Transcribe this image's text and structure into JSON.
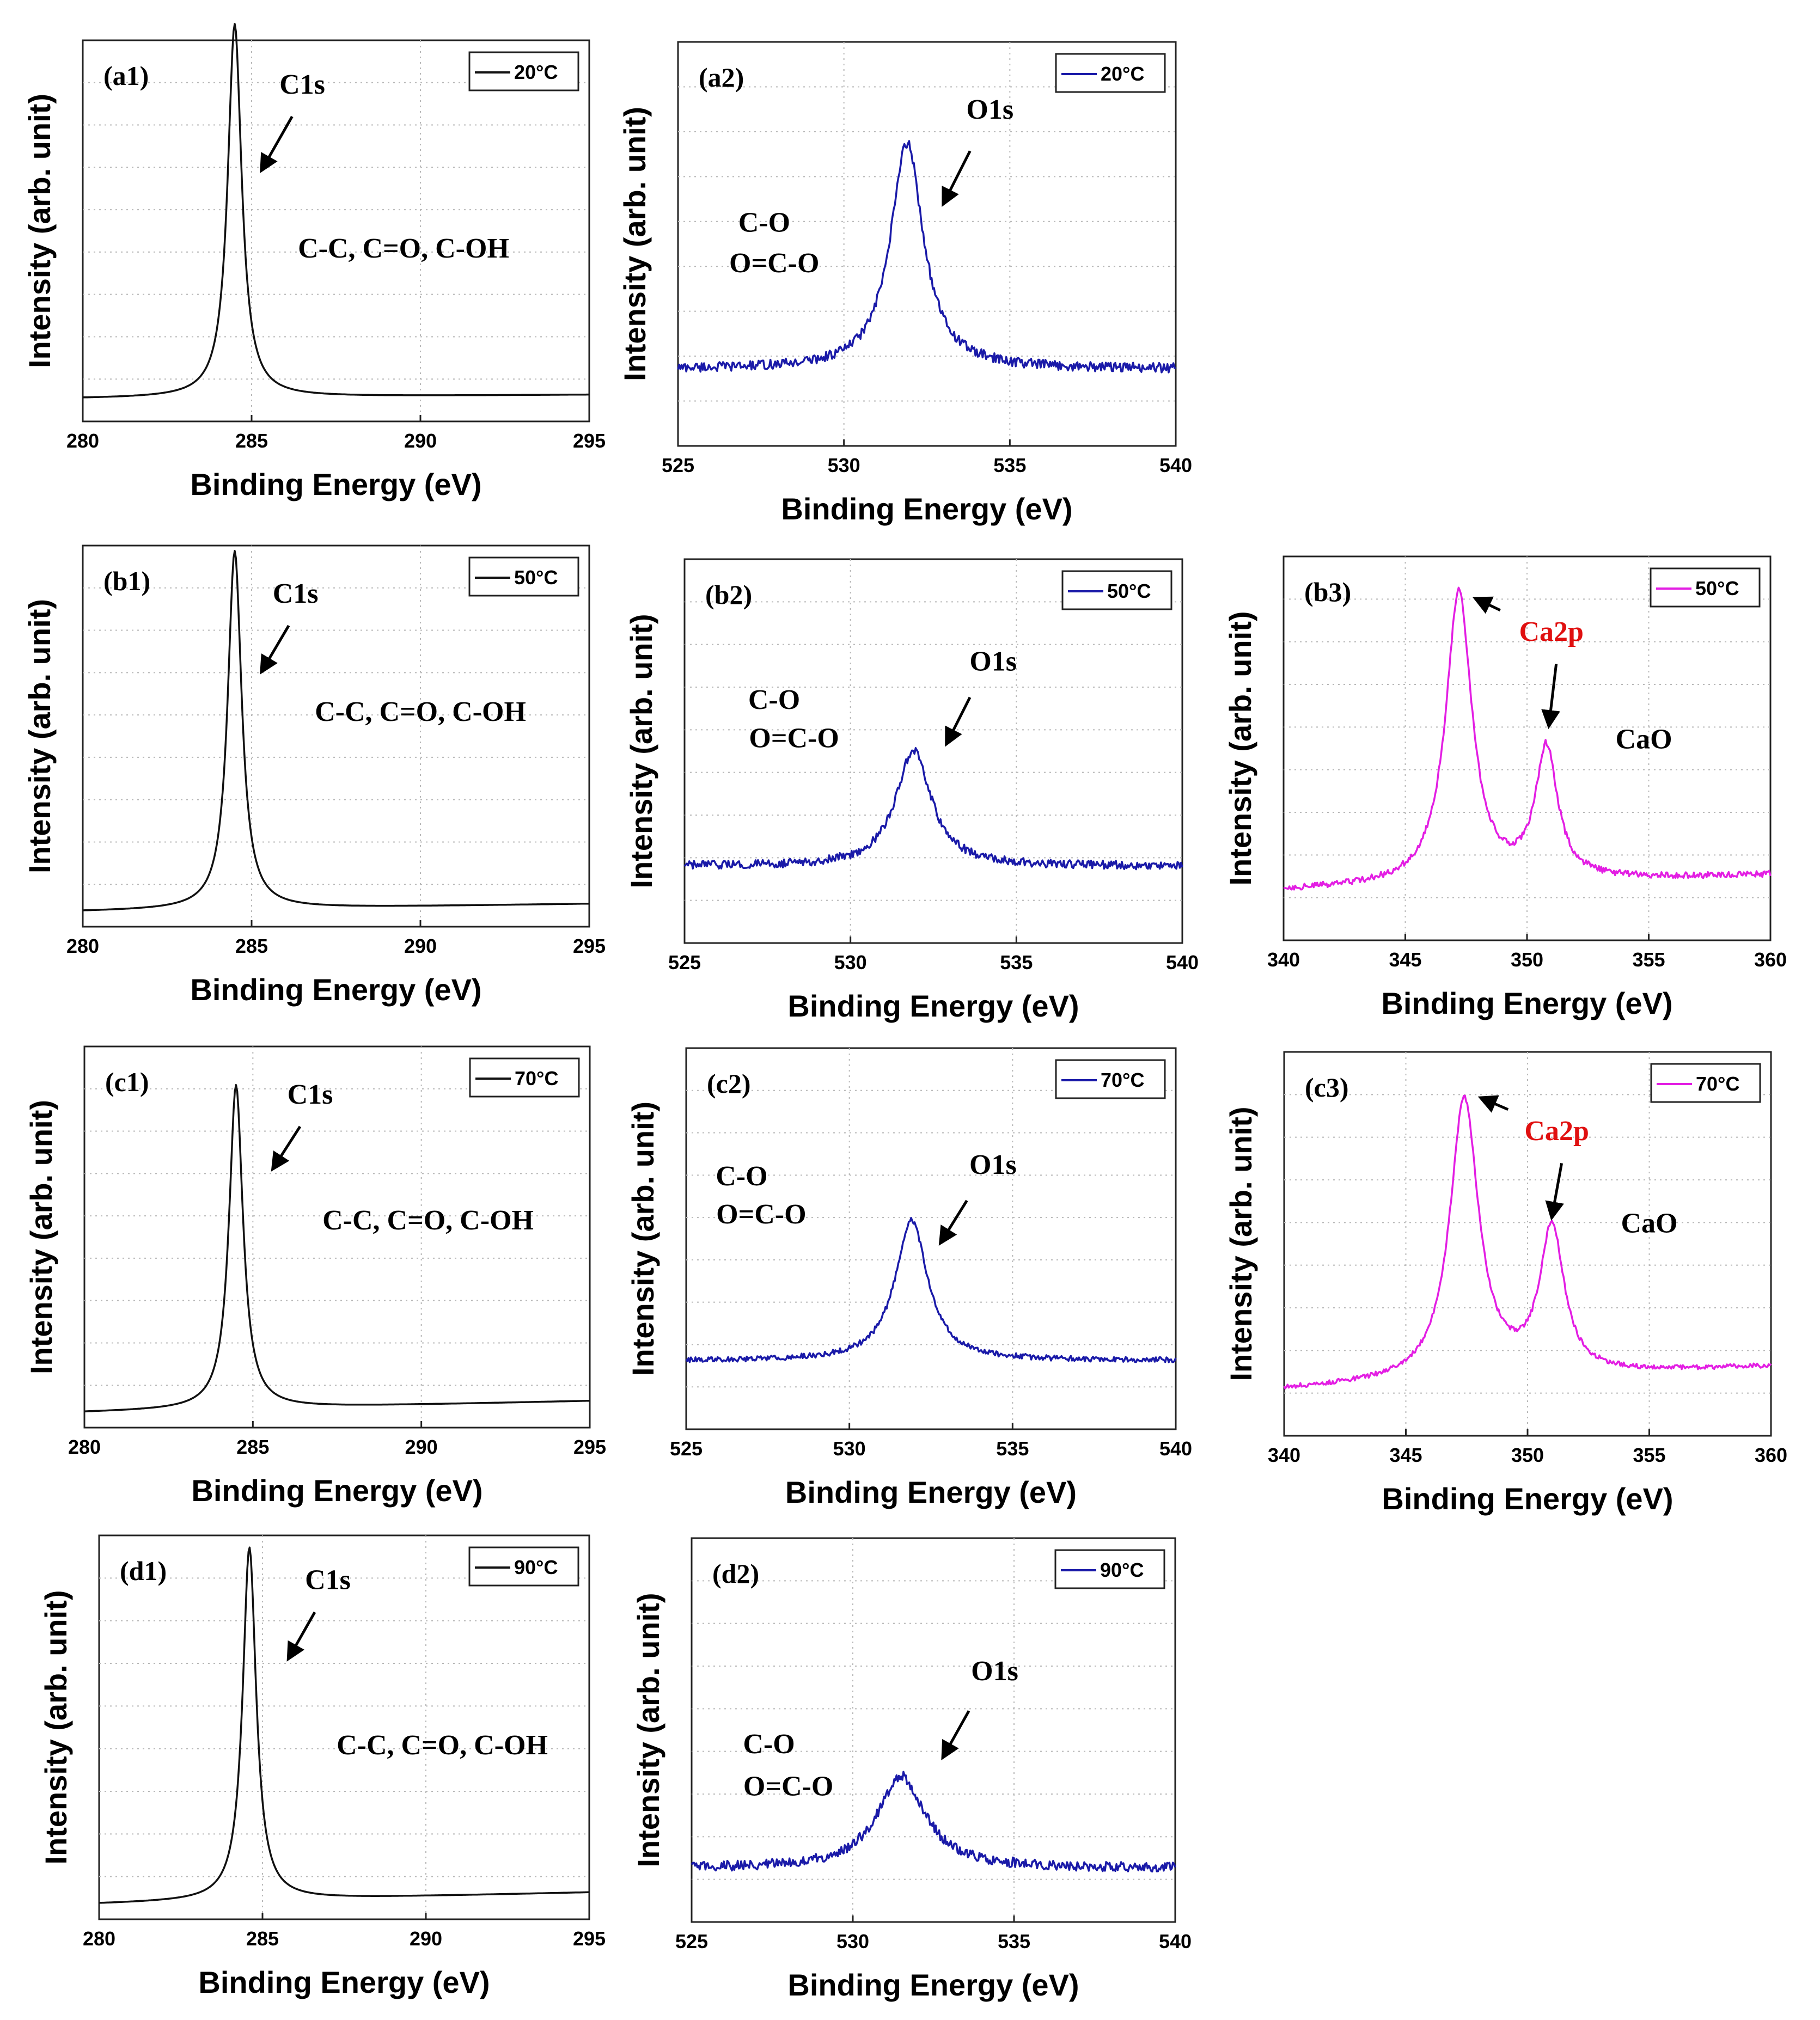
{
  "figure": {
    "axis_label_x": "Binding Energy (eV)",
    "axis_label_y": "Intensity (arb. unit)",
    "colors": {
      "C1s": "#111111",
      "O1s": "#1a1aa8",
      "Ca2p": "#e31ee3",
      "arrow": "#000000",
      "highlight": "#e01010",
      "grid": "#b8b8b8"
    }
  },
  "chart_data": [
    {
      "id": "a1",
      "panel_label": "(a1)",
      "type": "line",
      "temperature": "20°C",
      "xlabel": "Binding Energy (eV)",
      "ylabel": "Intensity (arb. unit)",
      "xlim": [
        280,
        295
      ],
      "xticks": [
        "280",
        "285",
        "290",
        "295"
      ],
      "ylim": [
        0,
        1
      ],
      "series": [
        {
          "name": "20°C",
          "color": "#111111",
          "peaks": [
            {
              "center": 284.5,
              "height": 0.98,
              "width": 0.25
            }
          ],
          "baseline": [
            0.06,
            0.07
          ],
          "noise": 0.0
        }
      ],
      "annotations": [
        {
          "text": "C1s",
          "at": [
            286.5,
            0.86
          ],
          "arrow_from": [
            286.2,
            0.8
          ],
          "arrow_to": [
            285.3,
            0.66
          ]
        },
        {
          "text": "C-C, C=O, C-OH",
          "at": [
            289.5,
            0.43
          ]
        }
      ]
    },
    {
      "id": "a2",
      "panel_label": "(a2)",
      "type": "line",
      "temperature": "20°C",
      "xlabel": "Binding Energy (eV)",
      "ylabel": "Intensity (arb. unit)",
      "xlim": [
        525,
        540
      ],
      "xticks": [
        "525",
        "530",
        "535",
        "540"
      ],
      "ylim": [
        0,
        1
      ],
      "series": [
        {
          "name": "20°C",
          "color": "#1a1aa8",
          "peaks": [
            {
              "center": 531.9,
              "height": 0.56,
              "width": 0.6
            }
          ],
          "baseline": [
            0.19,
            0.19
          ],
          "noise": 0.012
        }
      ],
      "annotations": [
        {
          "text": "O1s",
          "at": [
            534.4,
            0.81
          ],
          "arrow_from": [
            533.8,
            0.73
          ],
          "arrow_to": [
            533.0,
            0.6
          ]
        },
        {
          "text": "C-O",
          "at": [
            527.6,
            0.53
          ]
        },
        {
          "text": "O=C-O",
          "at": [
            527.9,
            0.43
          ]
        }
      ]
    },
    {
      "id": "b1",
      "panel_label": "(b1)",
      "type": "line",
      "temperature": "50°C",
      "xlabel": "Binding Energy (eV)",
      "ylabel": "Intensity (arb. unit)",
      "xlim": [
        280,
        295
      ],
      "xticks": [
        "280",
        "285",
        "290",
        "295"
      ],
      "ylim": [
        0,
        1
      ],
      "series": [
        {
          "name": "50°C",
          "color": "#111111",
          "peaks": [
            {
              "center": 284.5,
              "height": 0.94,
              "width": 0.25
            }
          ],
          "baseline": [
            0.04,
            0.06
          ],
          "noise": 0.0
        }
      ],
      "annotations": [
        {
          "text": "C1s",
          "at": [
            286.3,
            0.85
          ],
          "arrow_from": [
            286.1,
            0.79
          ],
          "arrow_to": [
            285.3,
            0.67
          ]
        },
        {
          "text": "C-C, C=O, C-OH",
          "at": [
            290.0,
            0.54
          ]
        }
      ]
    },
    {
      "id": "b2",
      "panel_label": "(b2)",
      "type": "line",
      "temperature": "50°C",
      "xlabel": "Binding Energy (eV)",
      "ylabel": "Intensity (arb. unit)",
      "xlim": [
        525,
        540
      ],
      "xticks": [
        "525",
        "530",
        "535",
        "540"
      ],
      "ylim": [
        0,
        1
      ],
      "series": [
        {
          "name": "50°C",
          "color": "#1a1aa8",
          "peaks": [
            {
              "center": 531.9,
              "height": 0.3,
              "width": 0.65
            }
          ],
          "baseline": [
            0.2,
            0.2
          ],
          "noise": 0.011
        }
      ],
      "annotations": [
        {
          "text": "O1s",
          "at": [
            534.3,
            0.71
          ],
          "arrow_from": [
            533.6,
            0.64
          ],
          "arrow_to": [
            532.9,
            0.52
          ]
        },
        {
          "text": "C-O",
          "at": [
            527.7,
            0.61
          ]
        },
        {
          "text": "O=C-O",
          "at": [
            528.3,
            0.51
          ]
        }
      ]
    },
    {
      "id": "b3",
      "panel_label": "(b3)",
      "type": "line",
      "temperature": "50°C",
      "xlabel": "Binding Energy (eV)",
      "ylabel": "Intensity (arb. unit)",
      "xlim": [
        340,
        360
      ],
      "xticks": [
        "340",
        "345",
        "350",
        "355",
        "360"
      ],
      "ylim": [
        0,
        1
      ],
      "series": [
        {
          "name": "50°C",
          "color": "#e31ee3",
          "peaks": [
            {
              "center": 347.2,
              "height": 0.76,
              "width": 0.65
            },
            {
              "center": 350.8,
              "height": 0.34,
              "width": 0.55
            }
          ],
          "baseline": [
            0.13,
            0.17
          ],
          "noise": 0.008
        }
      ],
      "annotations": [
        {
          "text": "Ca2p",
          "at": [
            351.0,
            0.78
          ],
          "highlight": true,
          "arrow_from": [
            348.9,
            0.86
          ],
          "arrow_to": [
            347.9,
            0.89
          ],
          "arrow2_from": [
            351.2,
            0.72
          ],
          "arrow2_to": [
            350.9,
            0.56
          ]
        },
        {
          "text": "CaO",
          "at": [
            354.8,
            0.5
          ]
        }
      ]
    },
    {
      "id": "c1",
      "panel_label": "(c1)",
      "type": "line",
      "temperature": "70°C",
      "xlabel": "Binding Energy (eV)",
      "ylabel": "Intensity (arb. unit)",
      "xlim": [
        280,
        295
      ],
      "xticks": [
        "280",
        "285",
        "290",
        "295"
      ],
      "ylim": [
        0,
        1
      ],
      "series": [
        {
          "name": "70°C",
          "color": "#111111",
          "peaks": [
            {
              "center": 284.5,
              "height": 0.85,
              "width": 0.25
            }
          ],
          "baseline": [
            0.04,
            0.07
          ],
          "noise": 0.0
        }
      ],
      "annotations": [
        {
          "text": "C1s",
          "at": [
            286.7,
            0.85
          ],
          "arrow_from": [
            286.4,
            0.79
          ],
          "arrow_to": [
            285.6,
            0.68
          ]
        },
        {
          "text": "C-C, C=O, C-OH",
          "at": [
            290.2,
            0.52
          ]
        }
      ]
    },
    {
      "id": "c2",
      "panel_label": "(c2)",
      "type": "line",
      "temperature": "70°C",
      "xlabel": "Binding Energy (eV)",
      "ylabel": "Intensity (arb. unit)",
      "xlim": [
        525,
        540
      ],
      "xticks": [
        "525",
        "530",
        "535",
        "540"
      ],
      "ylim": [
        0,
        1
      ],
      "series": [
        {
          "name": "70°C",
          "color": "#1a1aa8",
          "peaks": [
            {
              "center": 531.9,
              "height": 0.37,
              "width": 0.6
            }
          ],
          "baseline": [
            0.18,
            0.18
          ],
          "noise": 0.007
        }
      ],
      "annotations": [
        {
          "text": "O1s",
          "at": [
            534.4,
            0.67
          ],
          "arrow_from": [
            533.6,
            0.6
          ],
          "arrow_to": [
            532.8,
            0.49
          ]
        },
        {
          "text": "C-O",
          "at": [
            526.7,
            0.64
          ]
        },
        {
          "text": "O=C-O",
          "at": [
            527.3,
            0.54
          ]
        }
      ]
    },
    {
      "id": "c3",
      "panel_label": "(c3)",
      "type": "line",
      "temperature": "70°C",
      "xlabel": "Binding Energy (eV)",
      "ylabel": "Intensity (arb. unit)",
      "xlim": [
        340,
        360
      ],
      "xticks": [
        "340",
        "345",
        "350",
        "355",
        "360"
      ],
      "ylim": [
        0,
        1
      ],
      "series": [
        {
          "name": "70°C",
          "color": "#e31ee3",
          "peaks": [
            {
              "center": 347.4,
              "height": 0.73,
              "width": 0.72
            },
            {
              "center": 351.0,
              "height": 0.38,
              "width": 0.6
            }
          ],
          "baseline": [
            0.12,
            0.18
          ],
          "noise": 0.006
        }
      ],
      "annotations": [
        {
          "text": "Ca2p",
          "at": [
            351.2,
            0.77
          ],
          "highlight": true,
          "arrow_from": [
            349.2,
            0.85
          ],
          "arrow_to": [
            348.1,
            0.88
          ],
          "arrow2_from": [
            351.4,
            0.71
          ],
          "arrow2_to": [
            351.0,
            0.57
          ]
        },
        {
          "text": "CaO",
          "at": [
            355.0,
            0.53
          ]
        }
      ]
    },
    {
      "id": "d1",
      "panel_label": "(d1)",
      "type": "line",
      "temperature": "90°C",
      "xlabel": "Binding Energy (eV)",
      "ylabel": "Intensity (arb. unit)",
      "xlim": [
        280,
        295
      ],
      "xticks": [
        "280",
        "285",
        "290",
        "295"
      ],
      "ylim": [
        0,
        1
      ],
      "series": [
        {
          "name": "90°C",
          "color": "#111111",
          "peaks": [
            {
              "center": 284.6,
              "height": 0.92,
              "width": 0.25
            }
          ],
          "baseline": [
            0.04,
            0.07
          ],
          "noise": 0.0
        }
      ],
      "annotations": [
        {
          "text": "C1s",
          "at": [
            287.0,
            0.86
          ],
          "arrow_from": [
            286.6,
            0.8
          ],
          "arrow_to": [
            285.8,
            0.68
          ]
        },
        {
          "text": "C-C, C=O, C-OH",
          "at": [
            290.5,
            0.43
          ]
        }
      ]
    },
    {
      "id": "d2",
      "panel_label": "(d2)",
      "type": "line",
      "temperature": "90°C",
      "xlabel": "Binding Energy (eV)",
      "ylabel": "Intensity (arb. unit)",
      "xlim": [
        525,
        540
      ],
      "xticks": [
        "525",
        "530",
        "535",
        "540"
      ],
      "ylim": [
        0,
        1
      ],
      "series": [
        {
          "name": "90°C",
          "color": "#1a1aa8",
          "peaks": [
            {
              "center": 531.5,
              "height": 0.24,
              "width": 0.9
            }
          ],
          "baseline": [
            0.14,
            0.14
          ],
          "noise": 0.013
        }
      ],
      "annotations": [
        {
          "text": "O1s",
          "at": [
            534.4,
            0.63
          ],
          "arrow_from": [
            533.6,
            0.55
          ],
          "arrow_to": [
            532.8,
            0.43
          ]
        },
        {
          "text": "C-O",
          "at": [
            527.4,
            0.44
          ]
        },
        {
          "text": "O=C-O",
          "at": [
            528.0,
            0.33
          ]
        }
      ]
    }
  ]
}
